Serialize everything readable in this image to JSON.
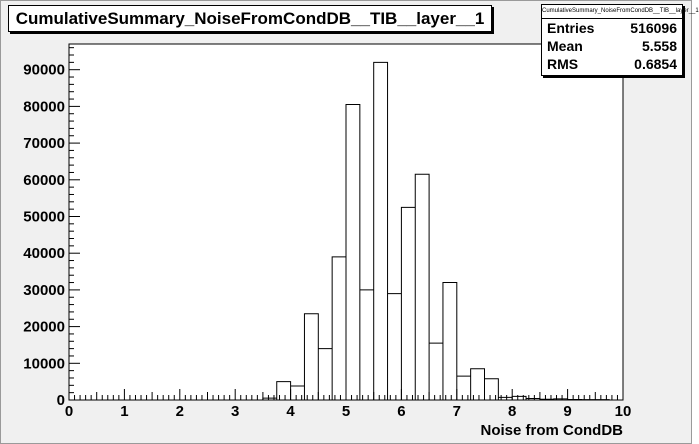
{
  "chart_data": {
    "type": "bar",
    "title": "CumulativeSummary_NoiseFromCondDB__TIB__layer__1",
    "xlabel": "Noise from CondDB",
    "ylabel": "",
    "xlim": [
      0,
      10
    ],
    "ylim": [
      0,
      97000
    ],
    "bin_width": 0.25,
    "x_ticks": [
      "0",
      "1",
      "2",
      "3",
      "4",
      "5",
      "6",
      "7",
      "8",
      "9",
      "10"
    ],
    "y_ticks": [
      "0",
      "10000",
      "20000",
      "30000",
      "40000",
      "50000",
      "60000",
      "70000",
      "80000",
      "90000"
    ],
    "bins": [
      {
        "x": 3.75,
        "value": 500
      },
      {
        "x": 4.0,
        "value": 5000
      },
      {
        "x": 4.25,
        "value": 3800
      },
      {
        "x": 4.5,
        "value": 23500
      },
      {
        "x": 4.75,
        "value": 14000
      },
      {
        "x": 5.0,
        "value": 39000
      },
      {
        "x": 5.25,
        "value": 80500
      },
      {
        "x": 5.5,
        "value": 30000
      },
      {
        "x": 5.75,
        "value": 92000
      },
      {
        "x": 6.0,
        "value": 29000
      },
      {
        "x": 6.25,
        "value": 52500
      },
      {
        "x": 6.5,
        "value": 61500
      },
      {
        "x": 6.75,
        "value": 15500
      },
      {
        "x": 7.0,
        "value": 32000
      },
      {
        "x": 7.25,
        "value": 6500
      },
      {
        "x": 7.5,
        "value": 8500
      },
      {
        "x": 7.75,
        "value": 5800
      },
      {
        "x": 8.0,
        "value": 700
      },
      {
        "x": 8.25,
        "value": 1000
      },
      {
        "x": 8.5,
        "value": 400
      },
      {
        "x": 8.75,
        "value": 200
      },
      {
        "x": 9.0,
        "value": 300
      },
      {
        "x": 9.25,
        "value": 150
      },
      {
        "x": 9.5,
        "value": 100
      },
      {
        "x": 9.75,
        "value": 100
      }
    ],
    "grid": false,
    "legend": "none"
  },
  "stats": {
    "title": "CumulativeSummary_NoiseFromCondDB__TIB__layer__1",
    "rows": [
      {
        "label": "Entries",
        "value": "516096"
      },
      {
        "label": "Mean",
        "value": "5.558"
      },
      {
        "label": "RMS",
        "value": "0.6854"
      }
    ]
  },
  "colors": {
    "pad_background": "#f0f0f0",
    "frame_background": "#ffffff",
    "line": "#000000"
  }
}
